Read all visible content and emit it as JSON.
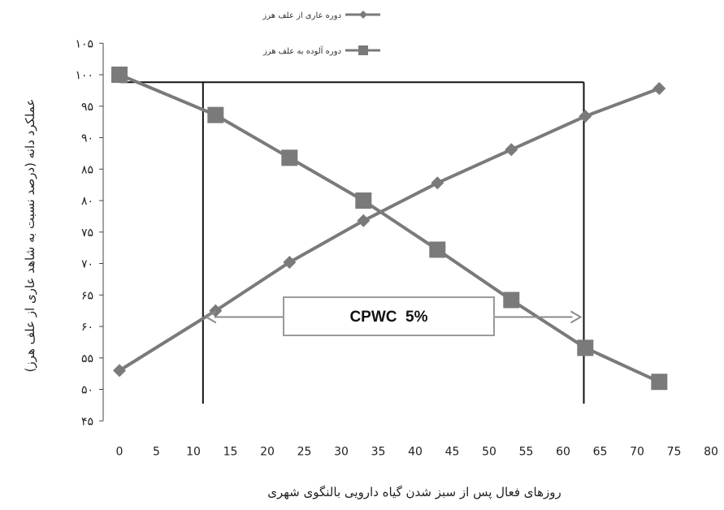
{
  "chart_data": {
    "type": "line",
    "xlabel": "روزهای فعال پس از سبز شدن گیاه دارویی بالنگوی شهری",
    "ylabel": "عملکرد دانه (درصد نسبت به شاهد عاری از علف هرز)",
    "x_ticks": [
      "0",
      "5",
      "10",
      "15",
      "20",
      "25",
      "30",
      "35",
      "40",
      "45",
      "50",
      "55",
      "60",
      "65",
      "70",
      "75",
      "80"
    ],
    "y_ticks": [
      "۱۰۵",
      "۱۰۰",
      "۹۵",
      "۹۰",
      "۸۵",
      "۸۰",
      "۷۵",
      "۷۰",
      "۶۵",
      "۶۰",
      "۵۵",
      "۵۰",
      "۴۵"
    ],
    "xlim": [
      0,
      80
    ],
    "ylim": [
      45,
      105
    ],
    "grid": false,
    "legend_position": "top-right",
    "series": [
      {
        "name": "دوره عاری از علف هرز",
        "marker": "diamond",
        "color": "#808080",
        "x": [
          0,
          13,
          23,
          33,
          43,
          53,
          63,
          73
        ],
        "y": [
          53,
          62.5,
          70.2,
          76.8,
          82.8,
          88.1,
          93.4,
          97.8
        ]
      },
      {
        "name": "دوره آلوده به علف هرز",
        "marker": "square",
        "color": "#808080",
        "x": [
          0,
          13,
          23,
          33,
          43,
          53,
          63,
          73
        ],
        "y": [
          100,
          93.6,
          86.8,
          80,
          72.2,
          64.2,
          56.6,
          51.2
        ]
      }
    ],
    "annotations": [
      {
        "text": "CPWC  5%"
      }
    ],
    "reference_lines": {
      "horizontal_y": 98.8,
      "vertical_x": [
        11.3,
        62.8
      ]
    }
  }
}
